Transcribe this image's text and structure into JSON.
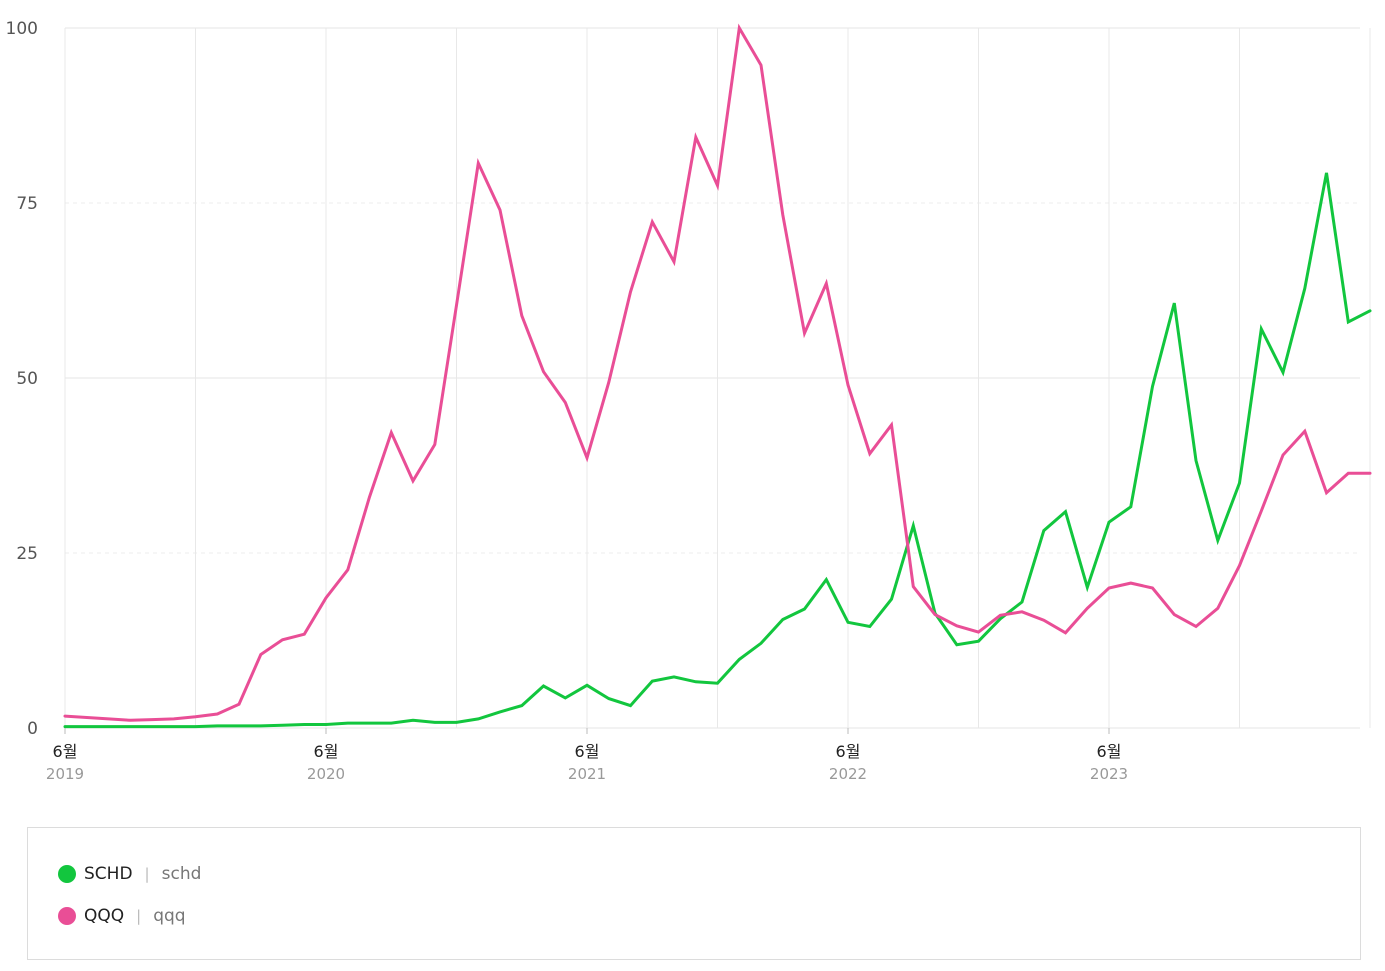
{
  "chart_data": {
    "type": "line",
    "ylim": [
      0,
      100
    ],
    "yticks": [
      0,
      25,
      50,
      75,
      100
    ],
    "y_tick_labels": [
      "0",
      "25",
      "50",
      "75",
      "100"
    ],
    "x_tick_labels": [
      {
        "month": "6월",
        "year": "2019"
      },
      {
        "month": "6월",
        "year": "2020"
      },
      {
        "month": "6월",
        "year": "2021"
      },
      {
        "month": "6월",
        "year": "2022"
      },
      {
        "month": "6월",
        "year": "2023"
      }
    ],
    "x": [
      "2019-06",
      "2019-07",
      "2019-08",
      "2019-09",
      "2019-10",
      "2019-11",
      "2019-12",
      "2020-01",
      "2020-02",
      "2020-03",
      "2020-04",
      "2020-05",
      "2020-06",
      "2020-07",
      "2020-08",
      "2020-09",
      "2020-10",
      "2020-11",
      "2020-12",
      "2021-01",
      "2021-02",
      "2021-03",
      "2021-04",
      "2021-05",
      "2021-06",
      "2021-07",
      "2021-08",
      "2021-09",
      "2021-10",
      "2021-11",
      "2021-12",
      "2022-01",
      "2022-02",
      "2022-03",
      "2022-04",
      "2022-05",
      "2022-06",
      "2022-07",
      "2022-08",
      "2022-09",
      "2022-10",
      "2022-11",
      "2022-12",
      "2023-01",
      "2023-02",
      "2023-03",
      "2023-04",
      "2023-05",
      "2023-06",
      "2023-07",
      "2023-08",
      "2023-09",
      "2023-10",
      "2023-11",
      "2023-12",
      "2024-01",
      "2024-02",
      "2024-03",
      "2024-04",
      "2024-05",
      "2024-06"
    ],
    "grid": true,
    "legend_position": "bottom",
    "series": [
      {
        "name": "SCHD",
        "term": "schd",
        "color": "#12c63e",
        "values": [
          0.2,
          0.2,
          0.2,
          0.2,
          0.2,
          0.2,
          0.2,
          0.3,
          0.3,
          0.3,
          0.4,
          0.5,
          0.5,
          0.7,
          0.7,
          0.7,
          1.1,
          0.8,
          0.8,
          1.3,
          2.3,
          3.2,
          6.0,
          4.3,
          6.1,
          4.2,
          3.2,
          6.7,
          7.3,
          6.6,
          6.4,
          9.8,
          12.1,
          15.5,
          17.0,
          21.2,
          15.1,
          14.5,
          18.4,
          28.9,
          16.4,
          11.9,
          12.4,
          15.6,
          18.0,
          28.2,
          30.9,
          20.1,
          29.4,
          31.6,
          48.8,
          60.7,
          38.2,
          26.8,
          35.0,
          57.0,
          50.8,
          62.8,
          79.3,
          58.0,
          59.6
        ]
      },
      {
        "name": "QQQ",
        "term": "qqq",
        "color": "#e94e96",
        "values": [
          1.7,
          1.5,
          1.3,
          1.1,
          1.2,
          1.3,
          1.6,
          2.0,
          3.4,
          10.5,
          12.6,
          13.4,
          18.6,
          22.6,
          33.0,
          42.2,
          35.3,
          40.5,
          60.4,
          80.7,
          74.0,
          58.9,
          50.9,
          46.5,
          38.6,
          49.4,
          62.3,
          72.3,
          66.6,
          84.4,
          77.5,
          100.0,
          94.7,
          73.3,
          56.4,
          63.5,
          49.0,
          39.2,
          43.3,
          20.2,
          16.2,
          14.6,
          13.7,
          16.1,
          16.6,
          15.4,
          13.6,
          17.1,
          20.0,
          20.7,
          20.0,
          16.2,
          14.5,
          17.1,
          23.2,
          31.0,
          39.0,
          42.4,
          33.6,
          36.4,
          36.4
        ]
      }
    ]
  }
}
